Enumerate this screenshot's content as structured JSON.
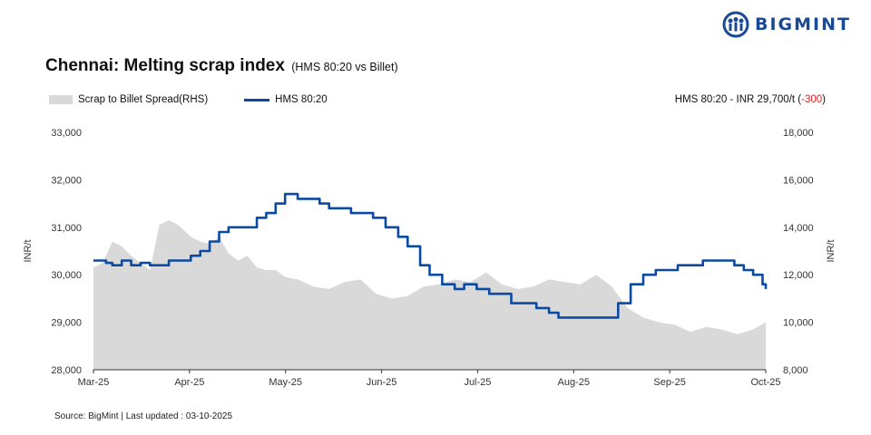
{
  "brand": {
    "name": "BIGMINT",
    "color": "#1a4a96"
  },
  "header": {
    "title": "Chennai: Melting scrap index",
    "subtitle": "(HMS 80:20 vs Billet)"
  },
  "legend": {
    "area_label": "Scrap to Billet Spread(RHS)",
    "line_label": "HMS 80:20",
    "price_note_prefix": "HMS 80:20 - INR 29,700/t (",
    "price_note_change": "-300",
    "price_note_suffix": ")"
  },
  "footer": {
    "source": "Source: BigMint | Last updated : 03-10-2025"
  },
  "chart_data": {
    "type": "line",
    "x_tick_labels": [
      "Mar-25",
      "Apr-25",
      "May-25",
      "Jun-25",
      "Jul-25",
      "Aug-25",
      "Sep-25",
      "Oct-25"
    ],
    "y_left": {
      "label": "INR/t",
      "range": [
        28000,
        33000
      ],
      "ticks": [
        28000,
        29000,
        30000,
        31000,
        32000,
        33000
      ],
      "tick_labels": [
        "28,000",
        "29,000",
        "30,000",
        "31,000",
        "32,000",
        "33,000"
      ]
    },
    "y_right": {
      "label": "INR/t",
      "range": [
        8000,
        18000
      ],
      "ticks": [
        8000,
        10000,
        12000,
        14000,
        16000,
        18000
      ],
      "tick_labels": [
        "8,000",
        "10,000",
        "12,000",
        "14,000",
        "16,000",
        "18,000"
      ]
    },
    "grid": false,
    "legend_position": "top-left",
    "series": [
      {
        "name": "Scrap to Billet Spread(RHS)",
        "kind": "area",
        "axis": "right",
        "color": "#d9d9d9",
        "x": [
          "2025-03-01",
          "2025-03-04",
          "2025-03-07",
          "2025-03-10",
          "2025-03-13",
          "2025-03-16",
          "2025-03-19",
          "2025-03-22",
          "2025-03-25",
          "2025-03-28",
          "2025-04-01",
          "2025-04-04",
          "2025-04-07",
          "2025-04-10",
          "2025-04-13",
          "2025-04-16",
          "2025-04-19",
          "2025-04-22",
          "2025-04-25",
          "2025-04-28",
          "2025-05-01",
          "2025-05-05",
          "2025-05-10",
          "2025-05-15",
          "2025-05-20",
          "2025-05-25",
          "2025-05-30",
          "2025-06-04",
          "2025-06-09",
          "2025-06-14",
          "2025-06-19",
          "2025-06-24",
          "2025-06-29",
          "2025-07-04",
          "2025-07-09",
          "2025-07-14",
          "2025-07-19",
          "2025-07-24",
          "2025-07-29",
          "2025-08-03",
          "2025-08-08",
          "2025-08-13",
          "2025-08-18",
          "2025-08-23",
          "2025-08-28",
          "2025-09-02",
          "2025-09-07",
          "2025-09-12",
          "2025-09-17",
          "2025-09-22",
          "2025-09-27",
          "2025-10-01"
        ],
        "values": [
          12300,
          12500,
          13400,
          13200,
          12800,
          12500,
          12200,
          14100,
          14300,
          14100,
          13600,
          13400,
          13300,
          13600,
          12900,
          12600,
          12800,
          12300,
          12200,
          12200,
          11900,
          11800,
          11500,
          11400,
          11700,
          11800,
          11200,
          11000,
          11100,
          11500,
          11600,
          11800,
          11700,
          12100,
          11600,
          11400,
          11500,
          11800,
          11700,
          11600,
          12000,
          11500,
          10600,
          10200,
          10000,
          9900,
          9600,
          9800,
          9700,
          9500,
          9700,
          10000
        ]
      },
      {
        "name": "HMS 80:20",
        "kind": "line",
        "axis": "left",
        "color": "#0b4aa2",
        "x": [
          "2025-03-01",
          "2025-03-05",
          "2025-03-07",
          "2025-03-10",
          "2025-03-13",
          "2025-03-16",
          "2025-03-19",
          "2025-03-22",
          "2025-03-25",
          "2025-03-28",
          "2025-04-01",
          "2025-04-04",
          "2025-04-07",
          "2025-04-10",
          "2025-04-13",
          "2025-04-16",
          "2025-04-19",
          "2025-04-22",
          "2025-04-25",
          "2025-04-28",
          "2025-05-01",
          "2025-05-05",
          "2025-05-09",
          "2025-05-12",
          "2025-05-15",
          "2025-05-19",
          "2025-05-22",
          "2025-05-26",
          "2025-05-29",
          "2025-06-02",
          "2025-06-06",
          "2025-06-09",
          "2025-06-13",
          "2025-06-16",
          "2025-06-20",
          "2025-06-24",
          "2025-06-27",
          "2025-07-01",
          "2025-07-05",
          "2025-07-09",
          "2025-07-12",
          "2025-07-16",
          "2025-07-20",
          "2025-07-24",
          "2025-07-27",
          "2025-07-31",
          "2025-08-04",
          "2025-08-08",
          "2025-08-11",
          "2025-08-15",
          "2025-08-19",
          "2025-08-23",
          "2025-08-27",
          "2025-08-30",
          "2025-09-03",
          "2025-09-07",
          "2025-09-11",
          "2025-09-15",
          "2025-09-18",
          "2025-09-21",
          "2025-09-24",
          "2025-09-27",
          "2025-09-30",
          "2025-10-01"
        ],
        "values": [
          30300,
          30250,
          30200,
          30300,
          30200,
          30250,
          30200,
          30200,
          30300,
          30300,
          30400,
          30500,
          30700,
          30900,
          31000,
          31000,
          31000,
          31200,
          31300,
          31500,
          31700,
          31600,
          31600,
          31500,
          31400,
          31400,
          31300,
          31300,
          31200,
          31000,
          30800,
          30600,
          30200,
          30000,
          29800,
          29700,
          29800,
          29700,
          29600,
          29600,
          29400,
          29400,
          29300,
          29200,
          29100,
          29100,
          29100,
          29100,
          29100,
          29400,
          29800,
          30000,
          30100,
          30100,
          30200,
          30200,
          30300,
          30300,
          30300,
          30200,
          30100,
          30000,
          29800,
          29700
        ]
      }
    ]
  }
}
